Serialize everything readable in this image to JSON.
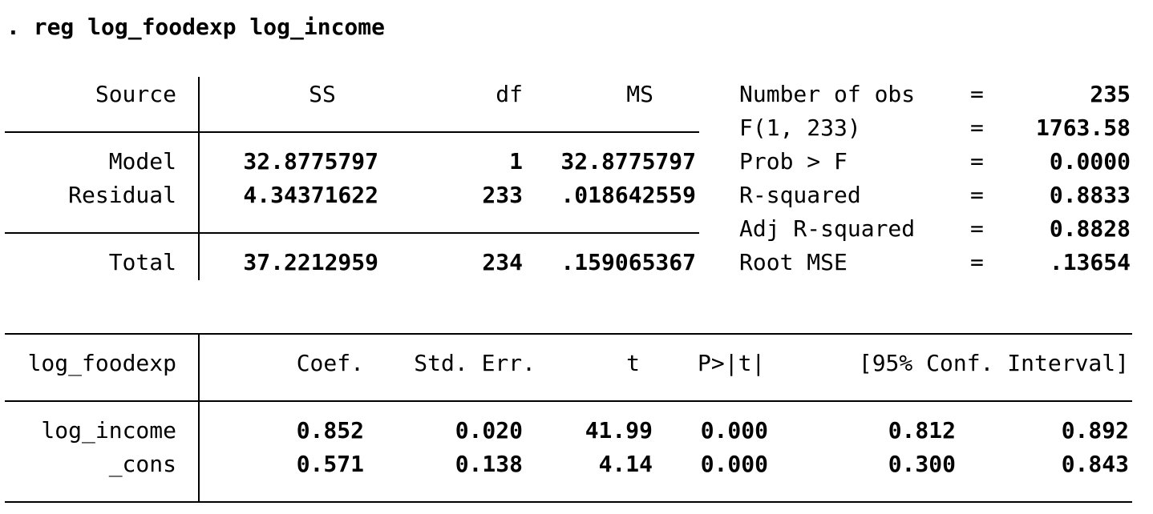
{
  "command": ". reg log_foodexp log_income",
  "anova": {
    "headers": {
      "source": "Source",
      "ss": "SS",
      "df": "df",
      "ms": "MS"
    },
    "rows": [
      {
        "source": "Model",
        "ss": "32.8775797",
        "df": "1",
        "ms": "32.8775797"
      },
      {
        "source": "Residual",
        "ss": "4.34371622",
        "df": "233",
        "ms": ".018642559"
      },
      {
        "source": "Total",
        "ss": "37.2212959",
        "df": "234",
        "ms": ".159065367"
      }
    ]
  },
  "stats": [
    {
      "label": "Number of obs",
      "eq": "=",
      "value": "235"
    },
    {
      "label": "F(1, 233)",
      "eq": "=",
      "value": "1763.58"
    },
    {
      "label": "Prob > F",
      "eq": "=",
      "value": "0.0000"
    },
    {
      "label": "R-squared",
      "eq": "=",
      "value": "0.8833"
    },
    {
      "label": "Adj R-squared",
      "eq": "=",
      "value": "0.8828"
    },
    {
      "label": "Root MSE",
      "eq": "=",
      "value": ".13654"
    }
  ],
  "coef": {
    "headers": {
      "depvar": "log_foodexp",
      "coef": "Coef.",
      "se": "Std. Err.",
      "t": "t",
      "p": "P>|t|",
      "ci": "[95% Conf. Interval]"
    },
    "rows": [
      {
        "var": "log_income",
        "coef": "0.852",
        "se": "0.020",
        "t": "41.99",
        "p": "0.000",
        "lo": "0.812",
        "hi": "0.892"
      },
      {
        "var": "_cons",
        "coef": "0.571",
        "se": "0.138",
        "t": "4.14",
        "p": "0.000",
        "lo": "0.300",
        "hi": "0.843"
      }
    ]
  }
}
